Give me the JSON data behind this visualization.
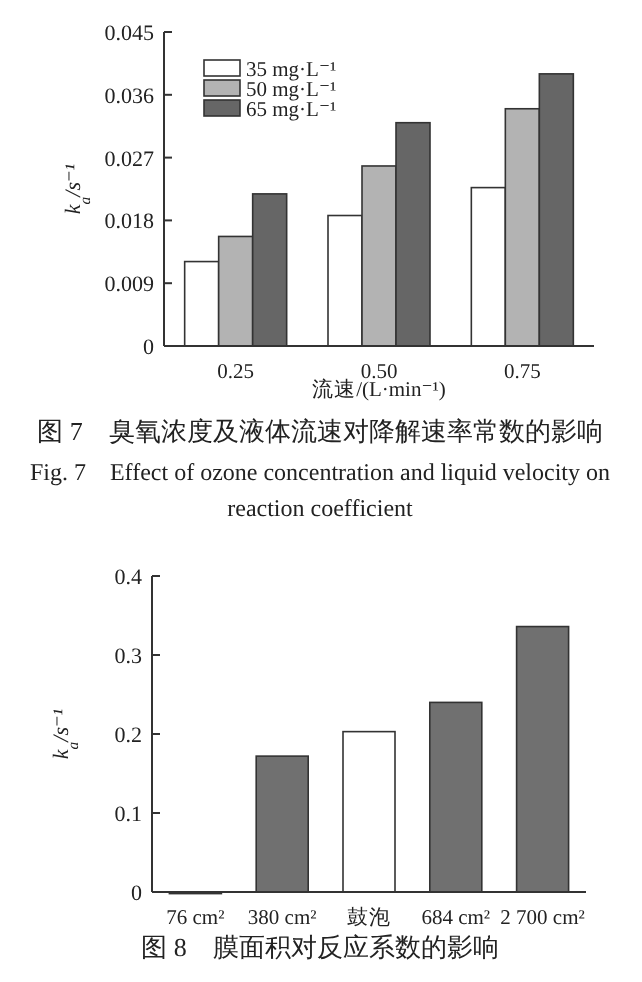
{
  "chart_data": [
    {
      "type": "bar",
      "title": "图 7　臭氧浓度及液体流速对降解速率常数的影响",
      "subtitle": "Fig. 7　Effect of ozone concentration and liquid velocity on reaction coefficient",
      "xlabel": "流速/(L·min⁻¹)",
      "ylabel": "k$_{a}$/s⁻¹",
      "categories": [
        "0.25",
        "0.50",
        "0.75"
      ],
      "series": [
        {
          "name": "35 mg·L⁻¹",
          "color": "#ffffff",
          "values": [
            0.0121,
            0.0187,
            0.0227
          ]
        },
        {
          "name": "50 mg·L⁻¹",
          "color": "#b3b3b3",
          "values": [
            0.0157,
            0.0258,
            0.034
          ]
        },
        {
          "name": "65 mg·L⁻¹",
          "color": "#666666",
          "values": [
            0.0218,
            0.032,
            0.039
          ]
        }
      ],
      "ylim": [
        0,
        0.045
      ],
      "yticks": [
        0,
        0.009,
        0.018,
        0.027,
        0.036,
        0.045
      ],
      "legend": "top left"
    },
    {
      "type": "bar",
      "title": "图 8　膜面积对反应系数的影响",
      "ylabel": "k$_{a}$/s⁻¹",
      "categories": [
        "76 cm²",
        "380 cm²",
        "鼓泡",
        "684 cm²",
        "2 700 cm²"
      ],
      "values": [
        0,
        0.172,
        0.203,
        0.24,
        0.336
      ],
      "colors": [
        "#707070",
        "#707070",
        "#ffffff",
        "#707070",
        "#707070"
      ],
      "ylim": [
        0,
        0.4
      ],
      "yticks": [
        0,
        0.1,
        0.2,
        0.3,
        0.4
      ]
    }
  ]
}
